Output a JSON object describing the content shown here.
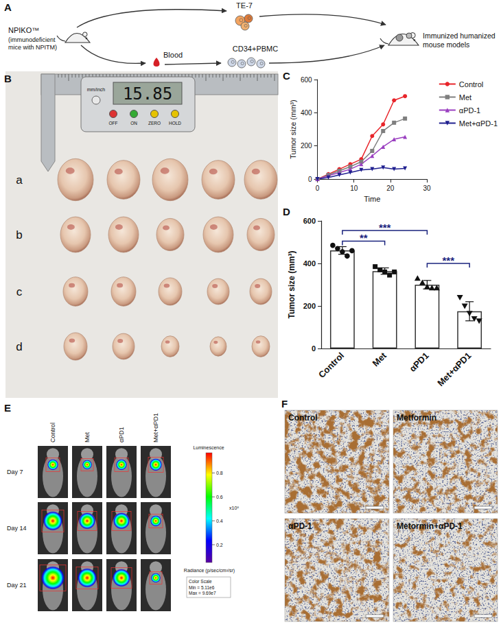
{
  "figure": {
    "panel_labels": [
      "A",
      "B",
      "C",
      "D",
      "E",
      "F"
    ],
    "A": {
      "source": "NPIKO™",
      "source_note": [
        "(immunodeficient",
        "mice with NPITM)"
      ],
      "tumor_line": "TE-7",
      "blood": "Blood",
      "cells": "CD34+PBMC",
      "result": [
        "Immunized humanized",
        "mouse models"
      ]
    },
    "B": {
      "caliper_reading": "15.85",
      "caliper_unit": "mm/inch",
      "caliper_buttons": [
        "OFF",
        "ON",
        "ZERO",
        "HOLD"
      ],
      "rows": [
        "a",
        "b",
        "c",
        "d"
      ]
    },
    "E": {
      "columns": [
        "Control",
        "Met",
        "αPD1",
        "Met+αPD1"
      ],
      "rows": [
        "Day 7",
        "Day 14",
        "Day 21"
      ],
      "colorbar": {
        "title": "Luminescence",
        "multiplier": "x10⁸",
        "range": [
          0.0511,
          0.969
        ],
        "ticks": [
          0.2,
          0.4,
          0.6,
          0.8
        ],
        "label": "Radiance (p/sec/cm²/sr)",
        "scale_note": [
          "Color Scale",
          "Min = 5.11e6",
          "Max = 9.69e7"
        ]
      }
    },
    "F": {
      "panels": [
        "Control",
        "Metformin",
        "αPD-1",
        "Metormin+αPD-1"
      ]
    }
  },
  "chart_data": [
    {
      "type": "line",
      "x": [
        0,
        3,
        6,
        9,
        12,
        15,
        18,
        21,
        24
      ],
      "x_label": "Time",
      "y_label": "Tumor size (mm³)",
      "xlim": [
        0,
        30
      ],
      "xticks": [
        0,
        10,
        20,
        30
      ],
      "ylim": [
        0,
        600
      ],
      "yticks": [
        0,
        200,
        400,
        600
      ],
      "legend": "right",
      "grid": false,
      "series": [
        {
          "name": "Control",
          "color": "#e8242a",
          "marker": "circle",
          "values": [
            0,
            30,
            60,
            90,
            120,
            260,
            330,
            475,
            500
          ]
        },
        {
          "name": "Met",
          "color": "#7f7f7f",
          "marker": "square",
          "values": [
            0,
            25,
            50,
            75,
            105,
            170,
            290,
            340,
            365
          ]
        },
        {
          "name": "αPD-1",
          "color": "#9a3fc0",
          "marker": "triangle",
          "values": [
            0,
            20,
            40,
            60,
            90,
            140,
            195,
            240,
            255
          ]
        },
        {
          "name": "Met+αPD-1",
          "color": "#1f1f8f",
          "marker": "triangle-down",
          "values": [
            0,
            10,
            25,
            40,
            55,
            60,
            70,
            60,
            65
          ]
        }
      ]
    },
    {
      "type": "bar",
      "categories": [
        "Control",
        "Met",
        "αPD1",
        "Met+αPD1"
      ],
      "values": [
        461,
        364,
        300,
        175
      ],
      "errors": [
        18,
        15,
        20,
        45
      ],
      "points": [
        [
          485,
          470,
          455,
          435,
          460
        ],
        [
          385,
          370,
          360,
          345,
          360
        ],
        [
          330,
          310,
          290,
          285,
          285
        ],
        [
          240,
          200,
          165,
          140,
          130
        ]
      ],
      "markers": [
        "circle",
        "square",
        "triangle",
        "triangle-down"
      ],
      "color": "#ffffff",
      "y_label": "Tumor size (mm³)",
      "ylim": [
        0,
        600
      ],
      "yticks": [
        0,
        200,
        400,
        600
      ],
      "grid": false,
      "annotations": [
        {
          "from": "Control",
          "to": "Met",
          "y": 505,
          "label": "**"
        },
        {
          "from": "Control",
          "to": "αPD1",
          "y": 555,
          "label": "***"
        },
        {
          "from": "αPD1",
          "to": "Met+αPD1",
          "y": 400,
          "label": "***"
        }
      ]
    }
  ]
}
